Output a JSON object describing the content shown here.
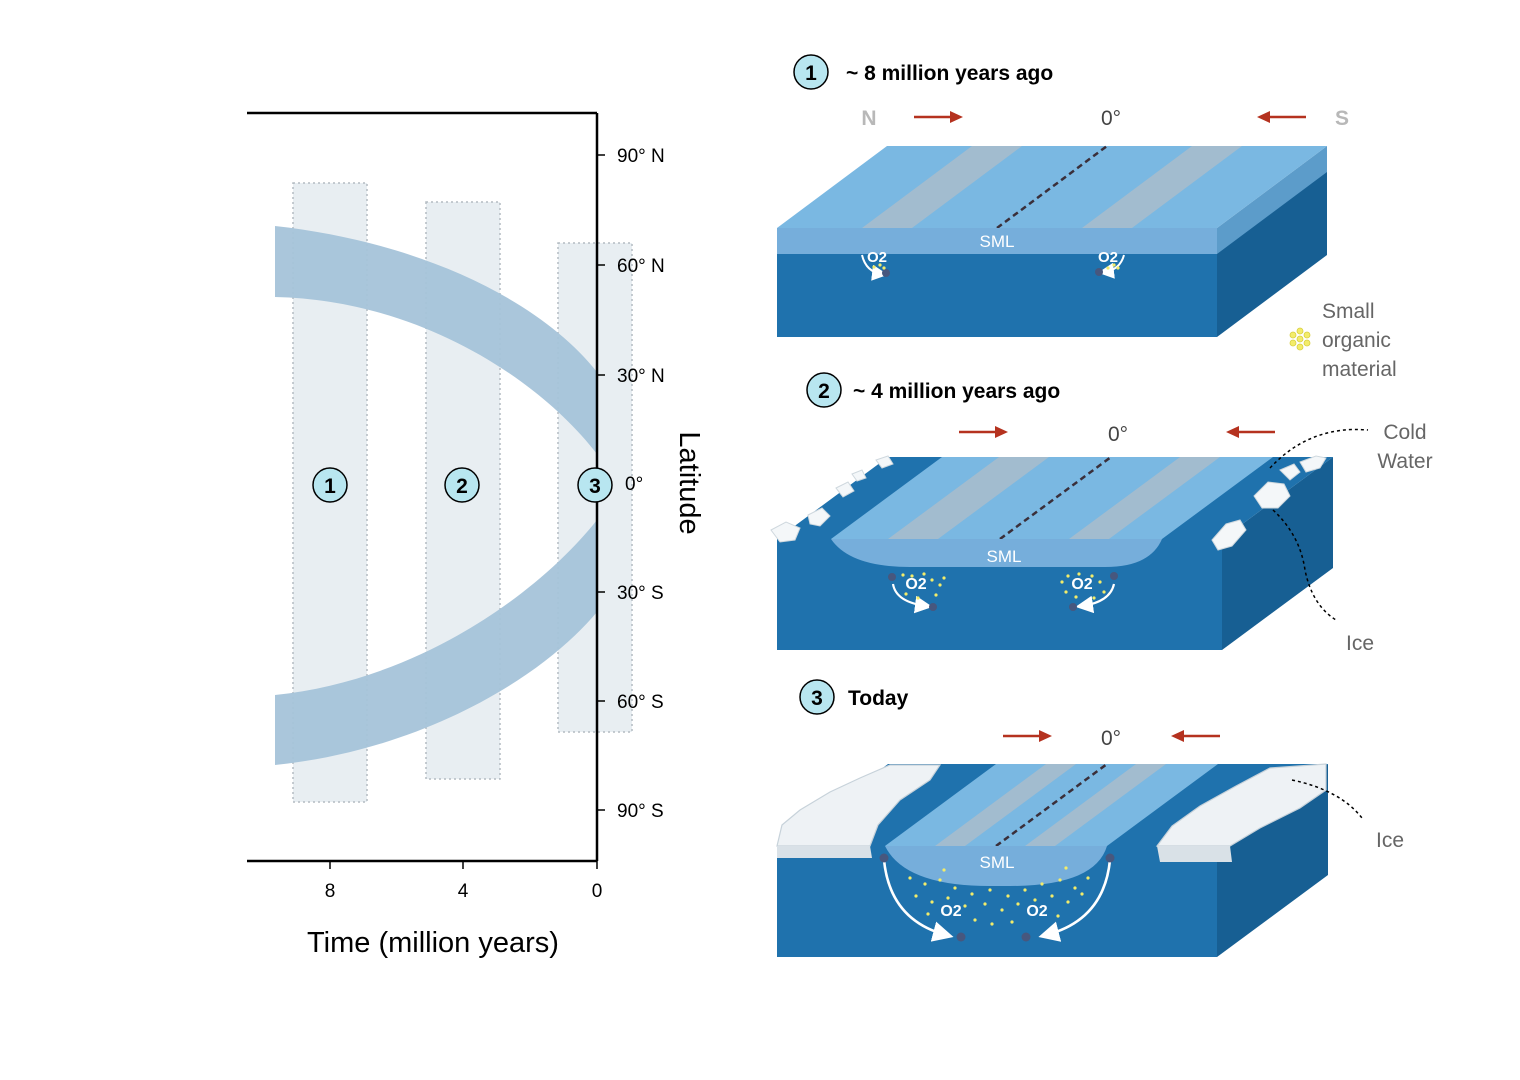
{
  "left_chart": {
    "y_ticks": [
      "90° N",
      "60° N",
      "30° N",
      "0°",
      "30° S",
      "60° S",
      "90° S"
    ],
    "x_ticks": [
      "8",
      "4",
      "0"
    ],
    "xlabel": "Time (million years)",
    "ylabel": "Latitude",
    "period_markers": [
      "1",
      "2",
      "3"
    ]
  },
  "panels": [
    {
      "number": "1",
      "title": "~ 8 million years ago",
      "left_label": "N",
      "right_label": "S",
      "equator_label": "0°",
      "sml_label": "SML",
      "o2_labels": [
        "O2",
        "O2"
      ]
    },
    {
      "number": "2",
      "title": "~ 4 million years ago",
      "equator_label": "0°",
      "sml_label": "SML",
      "o2_labels": [
        "O2",
        "O2"
      ]
    },
    {
      "number": "3",
      "title": "Today",
      "equator_label": "0°",
      "sml_label": "SML",
      "o2_labels": [
        "O2",
        "O2"
      ]
    }
  ],
  "legend": {
    "organic_line1": "Small",
    "organic_line2": "organic",
    "organic_line3": "material"
  },
  "annotations": {
    "cold_water_line1": "Cold",
    "cold_water_line2": "Water",
    "ice_panel2": "Ice",
    "ice_panel3": "Ice"
  },
  "colors": {
    "band": "#a5c3d9",
    "period_box": "#e8eef2",
    "circle_fill": "#b8e6f0",
    "ocean_top": "#7ab8e2",
    "ocean_front": "#1f72ad",
    "ocean_side": "#175f93",
    "sml": "#76aedb",
    "arrow_red": "#b5321f",
    "organic_yellow": "#f3ec6a"
  }
}
